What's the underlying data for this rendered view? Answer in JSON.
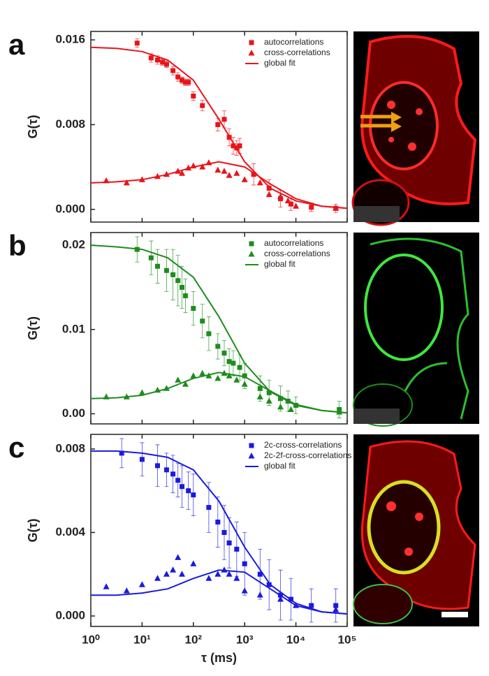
{
  "chart_data": [
    {
      "type": "scatter",
      "panel": "a",
      "ylabel": "G(τ)",
      "xscale": "log",
      "xlim": [
        1,
        100000
      ],
      "xticks": [
        1,
        10,
        100,
        1000,
        10000,
        100000
      ],
      "ylim": [
        -0.0012,
        0.0168
      ],
      "yticks": [
        {
          "value": 0,
          "label": "0.000"
        },
        0.008,
        0.016
      ],
      "series": [
        {
          "name": "autocorrelations",
          "color": "#e8141b",
          "marker": "square",
          "x": [
            8,
            15,
            20,
            25,
            30,
            40,
            50,
            60,
            70,
            80,
            100,
            150,
            300,
            400,
            500,
            600,
            700,
            800,
            1500,
            3000,
            5000,
            8000,
            20000,
            60000
          ],
          "values": [
            0.0157,
            0.0143,
            0.0141,
            0.0139,
            0.0137,
            0.0131,
            0.0125,
            0.0122,
            0.012,
            0.012,
            0.0107,
            0.0098,
            0.008,
            0.0085,
            0.0068,
            0.006,
            0.0058,
            0.006,
            0.0033,
            0.002,
            0.001,
            0.0005,
            0.0002,
            0.0001
          ],
          "errors": [
            0.0004,
            0.0004,
            0.0004,
            0.0003,
            0.0003,
            0.0004,
            0.0004,
            0.0003,
            0.0003,
            0.0003,
            0.0004,
            0.0005,
            0.0006,
            0.0008,
            0.0008,
            0.0008,
            0.0007,
            0.0007,
            0.001,
            0.0008,
            0.0008,
            0.0006,
            0.0004,
            0.0004
          ]
        },
        {
          "name": "cross-correlations",
          "color": "#e8141b",
          "marker": "triangle",
          "x": [
            2,
            5,
            10,
            20,
            30,
            50,
            60,
            80,
            100,
            150,
            200,
            300,
            400,
            500,
            700,
            1000,
            2000,
            3000,
            5000,
            7000,
            10000,
            60000
          ],
          "values": [
            0.0027,
            0.0025,
            0.0028,
            0.0031,
            0.0033,
            0.0036,
            0.0034,
            0.0039,
            0.0041,
            0.004,
            0.0044,
            0.0037,
            0.0036,
            0.0032,
            0.0034,
            0.0028,
            0.0025,
            0.0014,
            0.0012,
            0.0008,
            0.0003,
            0.0001
          ]
        }
      ],
      "fit": {
        "name": "global fit",
        "color": "#e8141b",
        "curves": [
          {
            "x": [
              1,
              3.16,
              10,
              31.6,
              100,
              316,
              1000,
              3162,
              10000,
              31623,
              100000
            ],
            "values": [
              0.0153,
              0.0152,
              0.0149,
              0.0141,
              0.0122,
              0.0085,
              0.0045,
              0.002,
              0.0008,
              0.0003,
              0.0001
            ]
          },
          {
            "x": [
              1,
              3.16,
              10,
              31.6,
              100,
              316,
              1000,
              3162,
              10000,
              31623,
              100000
            ],
            "values": [
              0.0025,
              0.0026,
              0.0028,
              0.0033,
              0.004,
              0.0045,
              0.004,
              0.0024,
              0.001,
              0.0003,
              0.0001
            ]
          }
        ]
      }
    },
    {
      "type": "scatter",
      "panel": "b",
      "ylabel": "G(τ)",
      "xscale": "log",
      "xlim": [
        1,
        100000
      ],
      "xticks": [
        1,
        10,
        100,
        1000,
        10000,
        100000
      ],
      "ylim": [
        -0.0012,
        0.0215
      ],
      "yticks": [
        {
          "value": 0,
          "label": "0.00"
        },
        0.01,
        0.02
      ],
      "series": [
        {
          "name": "autocorrelations",
          "color": "#1e8c1e",
          "marker": "square",
          "x": [
            8,
            15,
            20,
            30,
            40,
            50,
            60,
            70,
            100,
            150,
            200,
            300,
            400,
            500,
            600,
            800,
            1000,
            2000,
            3000,
            5000,
            7000,
            10000,
            70000
          ],
          "values": [
            0.0195,
            0.0185,
            0.0175,
            0.017,
            0.0165,
            0.0158,
            0.015,
            0.014,
            0.0125,
            0.011,
            0.0095,
            0.008,
            0.0072,
            0.0062,
            0.006,
            0.0055,
            0.0045,
            0.003,
            0.0025,
            0.0018,
            0.0015,
            0.001,
            0.0005
          ],
          "errors": [
            0.0015,
            0.002,
            0.002,
            0.0025,
            0.003,
            0.003,
            0.0025,
            0.002,
            0.002,
            0.002,
            0.002,
            0.0015,
            0.0015,
            0.0015,
            0.0015,
            0.0015,
            0.0015,
            0.0015,
            0.0015,
            0.0015,
            0.0012,
            0.001,
            0.001
          ]
        },
        {
          "name": "cross-correlations",
          "color": "#1e8c1e",
          "marker": "triangle",
          "x": [
            2,
            5,
            10,
            20,
            30,
            50,
            70,
            100,
            150,
            200,
            300,
            400,
            500,
            700,
            1000,
            2000,
            3000,
            5000,
            8000,
            70000
          ],
          "values": [
            0.002,
            0.002,
            0.0025,
            0.0028,
            0.003,
            0.004,
            0.0035,
            0.0045,
            0.0048,
            0.0045,
            0.0042,
            0.0048,
            0.0045,
            0.004,
            0.0035,
            0.002,
            0.0015,
            0.0008,
            0.0005,
            0.0002
          ]
        }
      ],
      "fit": {
        "name": "global fit",
        "color": "#1e8c1e",
        "curves": [
          {
            "x": [
              1,
              3.16,
              10,
              31.6,
              100,
              316,
              1000,
              3162,
              10000,
              31623,
              100000
            ],
            "values": [
              0.02,
              0.0198,
              0.0195,
              0.0185,
              0.0162,
              0.0115,
              0.006,
              0.0026,
              0.001,
              0.0004,
              0.0001
            ]
          },
          {
            "x": [
              1,
              3.16,
              10,
              31.6,
              100,
              316,
              1000,
              3162,
              10000,
              31623,
              100000
            ],
            "values": [
              0.0018,
              0.0019,
              0.0022,
              0.003,
              0.0042,
              0.0049,
              0.0044,
              0.0027,
              0.0011,
              0.0004,
              0.0001
            ]
          }
        ]
      }
    },
    {
      "type": "scatter",
      "panel": "c",
      "ylabel": "G(τ)",
      "xlabel": "τ (ms)",
      "xscale": "log",
      "xlim": [
        1,
        100000
      ],
      "xticks": [
        {
          "value": 1,
          "label": "10⁰"
        },
        {
          "value": 10,
          "label": "10¹"
        },
        {
          "value": 100,
          "label": "10²"
        },
        {
          "value": 1000,
          "label": "10³"
        },
        {
          "value": 10000,
          "label": "10⁴"
        },
        {
          "value": 100000,
          "label": "10⁵"
        }
      ],
      "ylim": [
        -0.0005,
        0.0087
      ],
      "yticks": [
        {
          "value": 0,
          "label": "0.000"
        },
        0.004,
        0.008
      ],
      "series": [
        {
          "name": "2c-cross-correlations",
          "color": "#1a1ae0",
          "marker": "square",
          "x": [
            4,
            10,
            20,
            30,
            40,
            50,
            60,
            80,
            100,
            200,
            300,
            400,
            500,
            700,
            1000,
            2000,
            3000,
            5000,
            8000,
            20000,
            60000
          ],
          "values": [
            0.0078,
            0.0075,
            0.0072,
            0.007,
            0.0068,
            0.0065,
            0.0062,
            0.006,
            0.0058,
            0.0052,
            0.0045,
            0.004,
            0.0035,
            0.0032,
            0.0025,
            0.002,
            0.0015,
            0.001,
            0.0008,
            0.0005,
            0.0005
          ],
          "errors": [
            0.0007,
            0.0008,
            0.001,
            0.0008,
            0.0009,
            0.0008,
            0.001,
            0.0009,
            0.001,
            0.0012,
            0.0012,
            0.0013,
            0.0012,
            0.0013,
            0.0015,
            0.0012,
            0.0012,
            0.0012,
            0.001,
            0.0008,
            0.0008
          ]
        },
        {
          "name": "2c-2f-cross-correlations",
          "color": "#1a1ae0",
          "marker": "triangle",
          "x": [
            2,
            5,
            10,
            20,
            30,
            40,
            50,
            60,
            100,
            200,
            300,
            400,
            500,
            700,
            1000,
            2000,
            5000,
            10000,
            60000
          ],
          "values": [
            0.0014,
            0.0012,
            0.0015,
            0.0018,
            0.002,
            0.0022,
            0.0028,
            0.002,
            0.0025,
            0.0018,
            0.002,
            0.0022,
            0.002,
            0.0018,
            0.0012,
            0.001,
            0.0008,
            0.0005,
            0.0003
          ]
        }
      ],
      "fit": {
        "name": "global fit",
        "color": "#1a1ae0",
        "curves": [
          {
            "x": [
              1,
              3.16,
              10,
              31.6,
              100,
              316,
              1000,
              3162,
              10000,
              31623,
              100000
            ],
            "values": [
              0.0079,
              0.0079,
              0.0078,
              0.0076,
              0.007,
              0.0055,
              0.0033,
              0.0015,
              0.0006,
              0.0002,
              0.0001
            ]
          },
          {
            "x": [
              1,
              3.16,
              10,
              31.6,
              100,
              316,
              1000,
              3162,
              10000,
              31623,
              100000
            ],
            "values": [
              0.001,
              0.001,
              0.0011,
              0.0013,
              0.0018,
              0.0022,
              0.0021,
              0.0013,
              0.0005,
              0.0002,
              0.0001
            ]
          }
        ]
      }
    }
  ]
}
